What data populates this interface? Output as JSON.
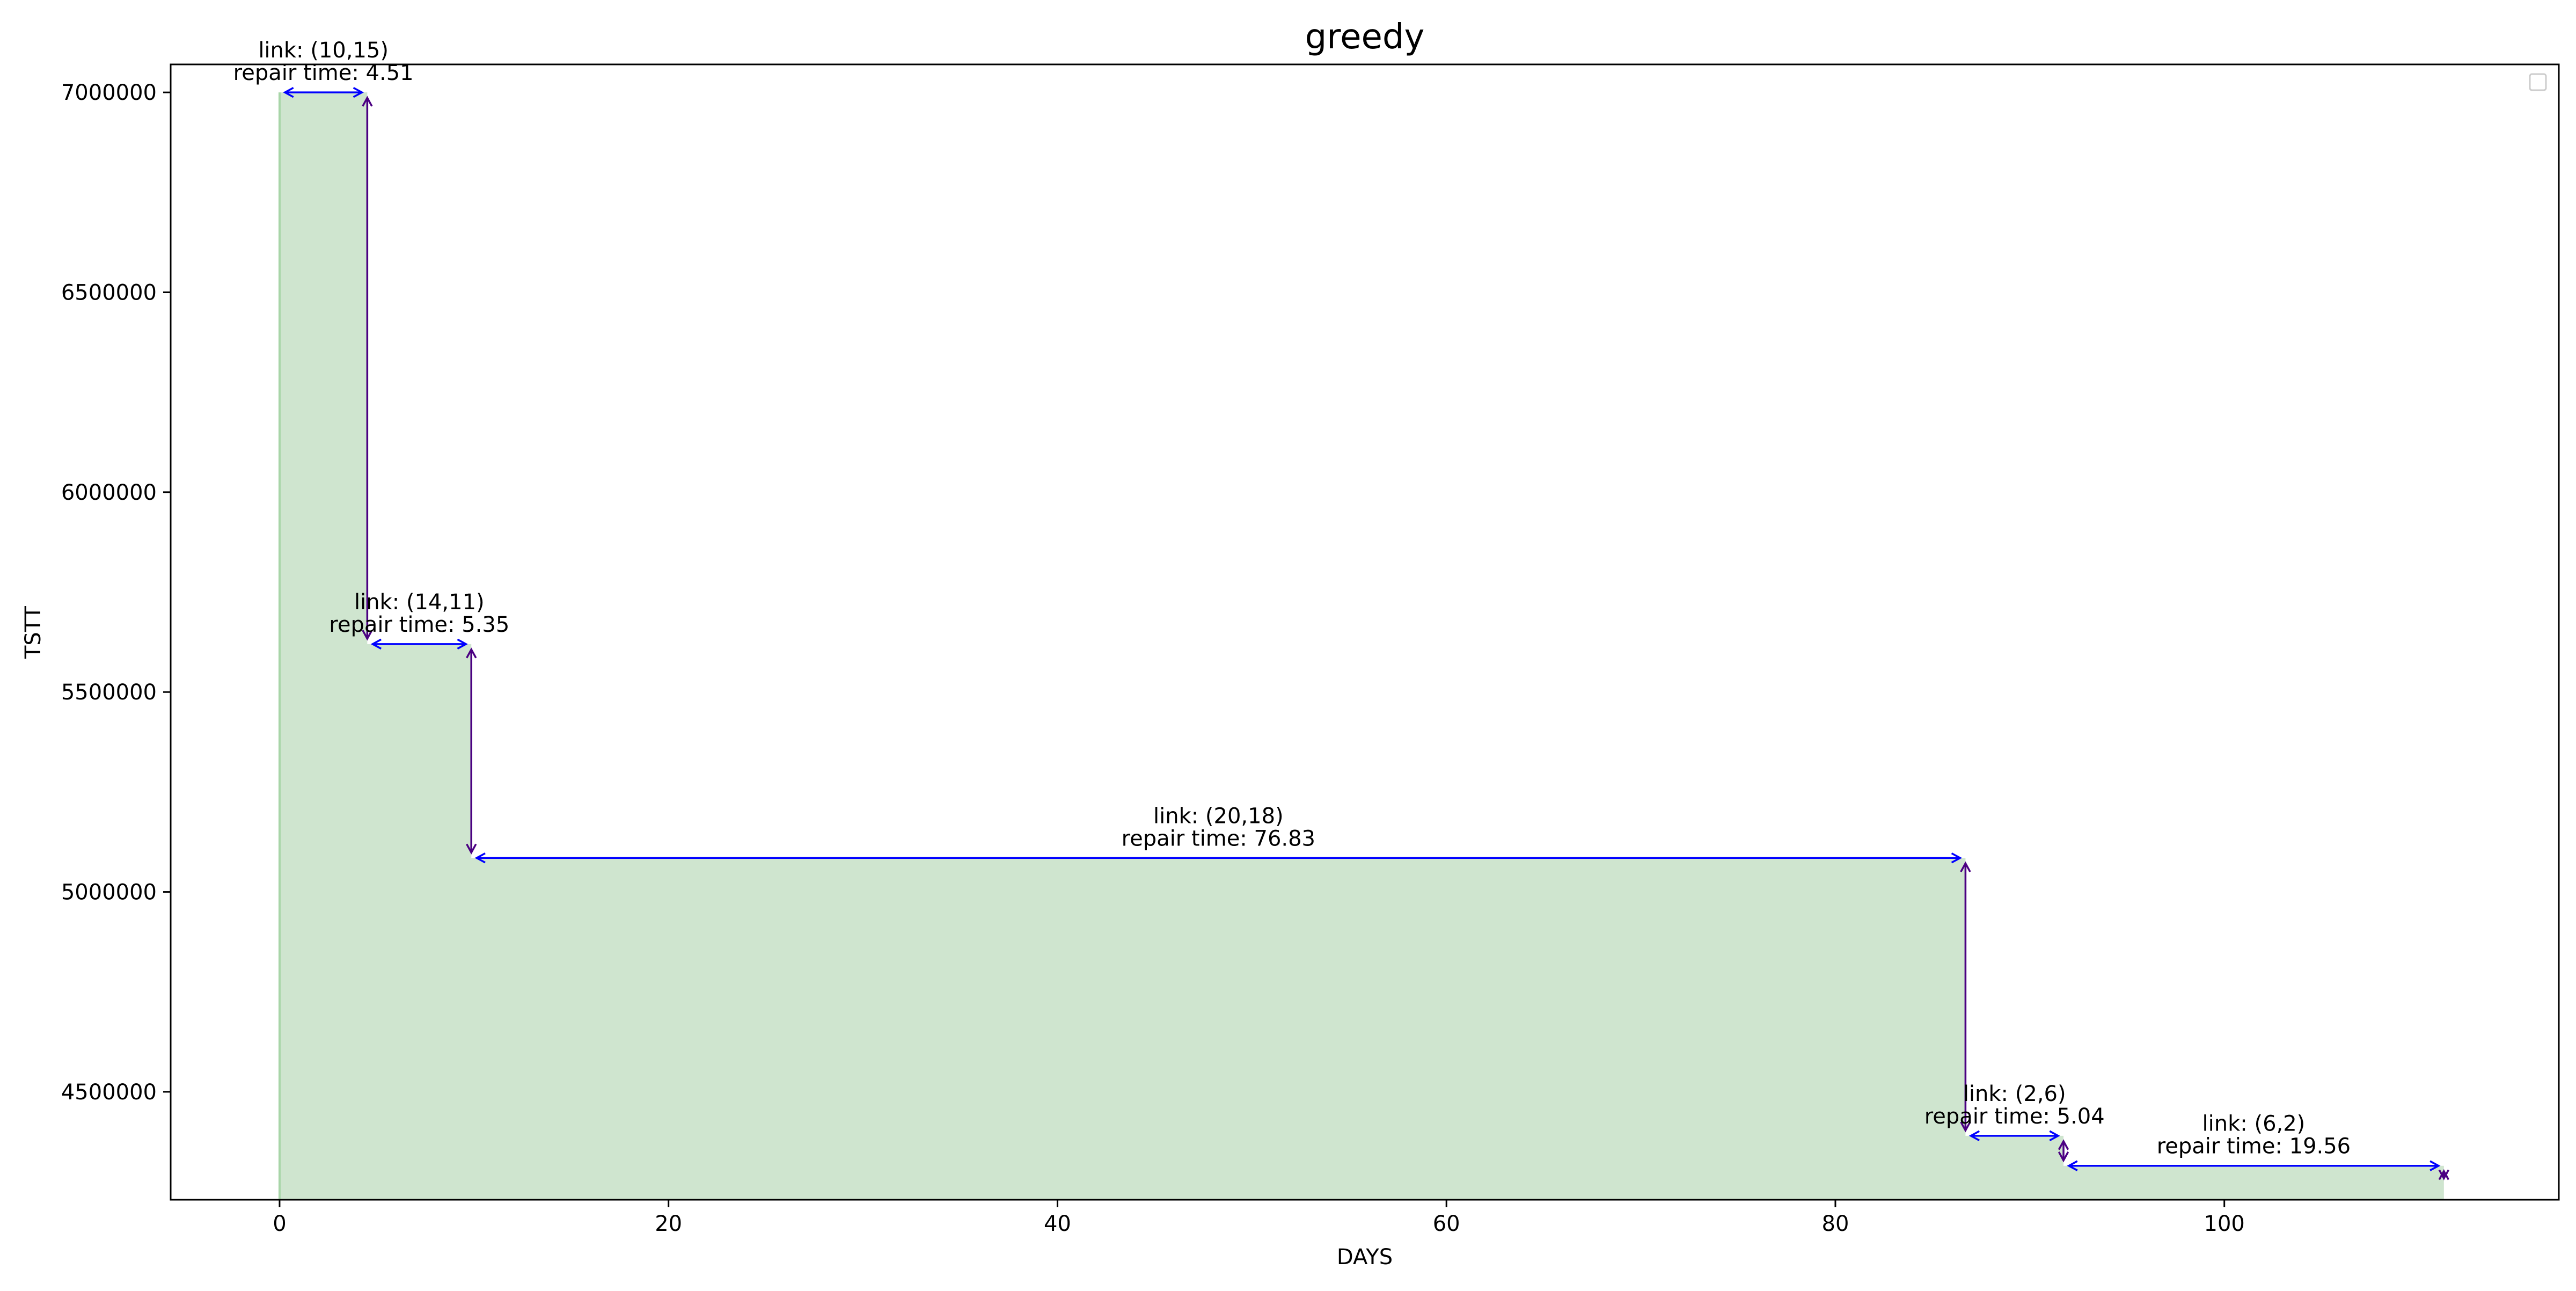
{
  "chart_data": {
    "type": "area",
    "title": "greedy",
    "xlabel": "DAYS",
    "ylabel": "TSTT",
    "xlim": [
      -5.6,
      117.2
    ],
    "ylim": [
      4230000,
      7070000
    ],
    "x_ticks": [
      0,
      20,
      40,
      60,
      80,
      100
    ],
    "y_ticks": [
      4500000,
      5000000,
      5500000,
      6000000,
      6500000,
      7000000
    ],
    "grid": false,
    "legend": "top-right (empty)",
    "fill_color": "#cfe5cf",
    "fill_edge_color": "#a8d5a8",
    "horizontal_arrow_color": "#0000ff",
    "vertical_arrow_color": "#4b0082",
    "steps": [
      {
        "start": 0.0,
        "end": 4.51,
        "tstt": 7000000
      },
      {
        "start": 4.51,
        "end": 9.86,
        "tstt": 5620000
      },
      {
        "start": 9.86,
        "end": 86.69,
        "tstt": 5085000
      },
      {
        "start": 86.69,
        "end": 91.73,
        "tstt": 4390000
      },
      {
        "start": 91.73,
        "end": 111.29,
        "tstt": 4315000
      }
    ],
    "final_tstt": 4270000,
    "annotations": [
      {
        "link": "link: (10,15)",
        "repair": "repair time: 4.51"
      },
      {
        "link": "link: (14,11)",
        "repair": "repair time: 5.35"
      },
      {
        "link": "link: (20,18)",
        "repair": "repair time: 76.83"
      },
      {
        "link": "link: (2,6)",
        "repair": "repair time: 5.04"
      },
      {
        "link": "link: (6,2)",
        "repair": "repair time: 19.56"
      }
    ]
  }
}
